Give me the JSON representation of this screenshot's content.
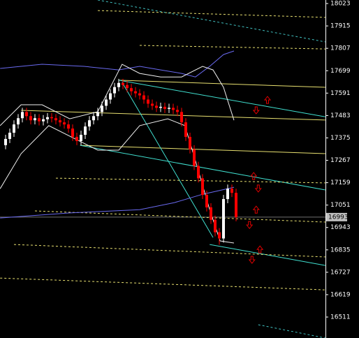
{
  "chart_data": {
    "type": "candlestick",
    "background": "#000000",
    "up_color": "#ffffff",
    "down_color": "#ff0000",
    "ylim": [
      16410,
      18040
    ],
    "yticks": [
      18023,
      17915,
      17807,
      17699,
      17591,
      17483,
      17375,
      17267,
      17159,
      17051,
      16943,
      16835,
      16727,
      16619,
      16511
    ],
    "last_price": 16993,
    "open": [
      17340,
      17370,
      17400,
      17440,
      17470,
      17500,
      17480,
      17460,
      17470,
      17455,
      17465,
      17475,
      17470,
      17460,
      17450,
      17440,
      17420,
      17380,
      17360,
      17390,
      17430,
      17460,
      17480,
      17500,
      17530,
      17560,
      17590,
      17620,
      17640,
      17630,
      17615,
      17600,
      17590,
      17580,
      17560,
      17540,
      17530,
      17520,
      17525,
      17515,
      17520,
      17510,
      17500,
      17450,
      17380,
      17320,
      17240,
      17180,
      17100,
      17040,
      16980,
      16920,
      16890,
      17080,
      17130,
      17110
    ],
    "high": [
      17390,
      17420,
      17460,
      17490,
      17520,
      17520,
      17500,
      17490,
      17490,
      17485,
      17495,
      17495,
      17490,
      17480,
      17470,
      17460,
      17440,
      17400,
      17410,
      17450,
      17480,
      17500,
      17520,
      17550,
      17580,
      17610,
      17640,
      17660,
      17660,
      17650,
      17635,
      17620,
      17610,
      17600,
      17580,
      17560,
      17550,
      17545,
      17545,
      17540,
      17540,
      17530,
      17520,
      17470,
      17400,
      17340,
      17260,
      17200,
      17120,
      17060,
      17000,
      16940,
      17100,
      17150,
      17150,
      17130
    ],
    "low": [
      17320,
      17350,
      17380,
      17420,
      17450,
      17460,
      17440,
      17440,
      17435,
      17435,
      17445,
      17450,
      17440,
      17430,
      17420,
      17400,
      17360,
      17340,
      17340,
      17370,
      17410,
      17440,
      17460,
      17480,
      17510,
      17540,
      17570,
      17600,
      17610,
      17595,
      17580,
      17570,
      17560,
      17540,
      17520,
      17510,
      17500,
      17500,
      17495,
      17495,
      17490,
      17480,
      17430,
      17360,
      17300,
      17220,
      17160,
      17080,
      17020,
      16960,
      16900,
      16860,
      16870,
      17060,
      17090,
      16973
    ],
    "close": [
      17370,
      17400,
      17440,
      17470,
      17500,
      17480,
      17460,
      17470,
      17455,
      17465,
      17475,
      17470,
      17460,
      17450,
      17440,
      17420,
      17380,
      17360,
      17390,
      17430,
      17460,
      17480,
      17500,
      17530,
      17560,
      17590,
      17620,
      17640,
      17630,
      17615,
      17600,
      17590,
      17580,
      17560,
      17540,
      17530,
      17520,
      17525,
      17515,
      17520,
      17510,
      17500,
      17450,
      17380,
      17320,
      17240,
      17180,
      17100,
      17040,
      16980,
      16920,
      16890,
      17080,
      17130,
      17110,
      16993
    ],
    "overlays": [
      {
        "color": "#e8e070",
        "style": "solid",
        "x": [
          27,
          76.3
        ],
        "values": [
          17653,
          17619
        ]
      },
      {
        "color": "#e8e070",
        "style": "solid",
        "x": [
          3.7,
          76.3
        ],
        "values": [
          17508,
          17461
        ]
      },
      {
        "color": "#e8e070",
        "style": "solid",
        "x": [
          17.8,
          76.3
        ],
        "values": [
          17339,
          17299
        ]
      },
      {
        "color": "#40e0d0",
        "style": "solid",
        "x": [
          27,
          76.3
        ],
        "values": [
          17653,
          17477
        ]
      },
      {
        "color": "#40e0d0",
        "style": "solid",
        "x": [
          17.8,
          76.3
        ],
        "values": [
          17339,
          17124
        ]
      },
      {
        "color": "#40e0d0",
        "style": "solid",
        "x": [
          27.8,
          49.5
        ],
        "values": [
          17643,
          16895
        ]
      },
      {
        "color": "#40e0d0",
        "style": "solid",
        "x": [
          48.7,
          76.3
        ],
        "values": [
          16861,
          16760
        ]
      },
      {
        "color": "#e8e070",
        "style": "dashed",
        "x": [
          32,
          76.3
        ],
        "values": [
          17821,
          17804
        ]
      },
      {
        "color": "#e8e070",
        "style": "dashed",
        "x": [
          22,
          76.3
        ],
        "values": [
          17989,
          17956
        ]
      },
      {
        "color": "#e8e070",
        "style": "dashed",
        "x": [
          12,
          76.3
        ],
        "values": [
          17181,
          17158
        ]
      },
      {
        "color": "#e8e070",
        "style": "dashed",
        "x": [
          7,
          76.3
        ],
        "values": [
          17023,
          16969
        ]
      },
      {
        "color": "#e8e070",
        "style": "dashed",
        "x": [
          2,
          76.3
        ],
        "values": [
          16861,
          16801
        ]
      },
      {
        "color": "#e8e070",
        "style": "dashed",
        "x": [
          -1.3,
          76.3
        ],
        "values": [
          16699,
          16642
        ]
      },
      {
        "color": "#40c0c0",
        "style": "dashed",
        "x": [
          22,
          76.3
        ],
        "values": [
          18040,
          17838
        ]
      },
      {
        "color": "#40c0c0",
        "style": "dashed",
        "x": [
          60.3,
          76.3
        ],
        "values": [
          16474,
          16410
        ]
      },
      {
        "color": "#6a6af0",
        "style": "solid",
        "x": [
          -1.3,
          8.7,
          18.7,
          27,
          32,
          37,
          42,
          45.3,
          48.7,
          52,
          54.5
        ],
        "values": [
          17710,
          17730,
          17720,
          17703,
          17720,
          17703,
          17686,
          17669,
          17720,
          17777,
          17794
        ]
      },
      {
        "color": "#6a6af0",
        "style": "solid",
        "x": [
          -1.3,
          15.3,
          32,
          40.3,
          47,
          54.5
        ],
        "values": [
          16989,
          17013,
          17029,
          17063,
          17103,
          17137
        ]
      },
      {
        "color": "#f0f0f0",
        "style": "solid",
        "x": [
          -1.3,
          3.7,
          8.7,
          15.3,
          22,
          27.8,
          32,
          37,
          42,
          47,
          49.5,
          52,
          54.5
        ],
        "values": [
          17434,
          17535,
          17535,
          17467,
          17501,
          17730,
          17686,
          17669,
          17669,
          17720,
          17703,
          17619,
          17460
        ]
      },
      {
        "color": "#f0f0f0",
        "style": "solid",
        "x": [
          -1.3,
          3.7,
          10.3,
          17,
          22,
          27,
          32,
          38.7,
          42.8,
          45.3,
          48.7,
          51.2,
          54.5
        ],
        "values": [
          17130,
          17299,
          17434,
          17366,
          17316,
          17316,
          17434,
          17467,
          17434,
          17265,
          17029,
          16878,
          16868
        ]
      }
    ],
    "arrows": [
      {
        "x": 62.5,
        "value": 17558,
        "dir": "up"
      },
      {
        "x": 59.8,
        "value": 17508,
        "dir": "down"
      },
      {
        "x": 59.2,
        "value": 17191,
        "dir": "up"
      },
      {
        "x": 60.3,
        "value": 17131,
        "dir": "down"
      },
      {
        "x": 59.8,
        "value": 17029,
        "dir": "up"
      },
      {
        "x": 58.2,
        "value": 16955,
        "dir": "down"
      },
      {
        "x": 60.7,
        "value": 16837,
        "dir": "up"
      },
      {
        "x": 58.8,
        "value": 16787,
        "dir": "down"
      }
    ]
  }
}
